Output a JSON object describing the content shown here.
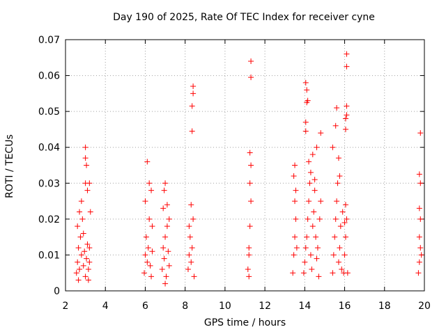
{
  "chart_data": {
    "type": "scatter",
    "title": "Day 190 of 2025, Rate Of TEC Index for receiver cyne",
    "xlabel": "GPS time / hours",
    "ylabel": "ROTI / TECUs",
    "xlim": [
      2,
      20
    ],
    "ylim": [
      0,
      0.07
    ],
    "x_ticks": [
      2,
      4,
      6,
      8,
      10,
      12,
      14,
      16,
      18,
      20
    ],
    "y_ticks": [
      0,
      0.01,
      0.02,
      0.03,
      0.04,
      0.05,
      0.06,
      0.07
    ],
    "grid": true,
    "marker": "+",
    "color": "#ff0000",
    "series": [
      {
        "points": [
          [
            2.55,
            0.005
          ],
          [
            2.6,
            0.008
          ],
          [
            2.65,
            0.012
          ],
          [
            2.7,
            0.006
          ],
          [
            2.75,
            0.015
          ],
          [
            2.8,
            0.01
          ],
          [
            2.85,
            0.02
          ],
          [
            2.9,
            0.007
          ],
          [
            2.95,
            0.011
          ],
          [
            3.0,
            0.004
          ],
          [
            3.05,
            0.009
          ],
          [
            3.1,
            0.013
          ],
          [
            3.15,
            0.006
          ],
          [
            3.2,
            0.008
          ],
          [
            2.6,
            0.018
          ],
          [
            2.7,
            0.022
          ],
          [
            2.8,
            0.025
          ],
          [
            2.9,
            0.016
          ],
          [
            3.0,
            0.03
          ],
          [
            3.05,
            0.035
          ],
          [
            3.0,
            0.037
          ],
          [
            3.0,
            0.04
          ],
          [
            3.1,
            0.028
          ],
          [
            3.2,
            0.03
          ],
          [
            3.25,
            0.022
          ],
          [
            3.2,
            0.012
          ],
          [
            2.65,
            0.003
          ],
          [
            3.15,
            0.003
          ],
          [
            5.95,
            0.005
          ],
          [
            6.0,
            0.01
          ],
          [
            6.05,
            0.015
          ],
          [
            6.1,
            0.008
          ],
          [
            6.15,
            0.012
          ],
          [
            6.2,
            0.02
          ],
          [
            6.25,
            0.007
          ],
          [
            6.3,
            0.004
          ],
          [
            6.35,
            0.011
          ],
          [
            6.0,
            0.025
          ],
          [
            6.1,
            0.036
          ],
          [
            6.2,
            0.03
          ],
          [
            6.3,
            0.028
          ],
          [
            6.35,
            0.018
          ],
          [
            6.85,
            0.006
          ],
          [
            6.9,
            0.012
          ],
          [
            6.95,
            0.009
          ],
          [
            7.0,
            0.015
          ],
          [
            7.05,
            0.004
          ],
          [
            7.1,
            0.018
          ],
          [
            7.15,
            0.011
          ],
          [
            7.2,
            0.007
          ],
          [
            6.9,
            0.023
          ],
          [
            6.95,
            0.028
          ],
          [
            7.0,
            0.03
          ],
          [
            7.1,
            0.024
          ],
          [
            7.0,
            0.002
          ],
          [
            7.2,
            0.02
          ],
          [
            8.15,
            0.006
          ],
          [
            8.2,
            0.01
          ],
          [
            8.25,
            0.015
          ],
          [
            8.3,
            0.008
          ],
          [
            8.35,
            0.012
          ],
          [
            8.4,
            0.02
          ],
          [
            8.45,
            0.004
          ],
          [
            8.3,
            0.024
          ],
          [
            8.35,
            0.0445
          ],
          [
            8.35,
            0.0515
          ],
          [
            8.4,
            0.055
          ],
          [
            8.4,
            0.057
          ],
          [
            8.2,
            0.018
          ],
          [
            11.15,
            0.006
          ],
          [
            11.2,
            0.012
          ],
          [
            11.25,
            0.018
          ],
          [
            11.3,
            0.025
          ],
          [
            11.25,
            0.03
          ],
          [
            11.3,
            0.035
          ],
          [
            11.25,
            0.0385
          ],
          [
            11.2,
            0.004
          ],
          [
            11.3,
            0.0595
          ],
          [
            11.3,
            0.064
          ],
          [
            11.2,
            0.01
          ],
          [
            13.4,
            0.005
          ],
          [
            13.45,
            0.01
          ],
          [
            13.5,
            0.015
          ],
          [
            13.55,
            0.02
          ],
          [
            13.5,
            0.025
          ],
          [
            13.45,
            0.032
          ],
          [
            13.5,
            0.035
          ],
          [
            13.55,
            0.028
          ],
          [
            13.6,
            0.012
          ],
          [
            13.95,
            0.005
          ],
          [
            14.0,
            0.008
          ],
          [
            14.05,
            0.012
          ],
          [
            14.1,
            0.015
          ],
          [
            14.15,
            0.02
          ],
          [
            14.2,
            0.025
          ],
          [
            14.25,
            0.03
          ],
          [
            14.3,
            0.01
          ],
          [
            14.35,
            0.006
          ],
          [
            14.4,
            0.018
          ],
          [
            14.45,
            0.022
          ],
          [
            14.5,
            0.028
          ],
          [
            14.55,
            0.015
          ],
          [
            14.6,
            0.009
          ],
          [
            14.65,
            0.012
          ],
          [
            14.7,
            0.004
          ],
          [
            14.75,
            0.02
          ],
          [
            14.8,
            0.025
          ],
          [
            14.05,
            0.0445
          ],
          [
            14.05,
            0.047
          ],
          [
            14.1,
            0.0525
          ],
          [
            14.15,
            0.053
          ],
          [
            14.05,
            0.058
          ],
          [
            14.1,
            0.056
          ],
          [
            14.2,
            0.036
          ],
          [
            14.4,
            0.038
          ],
          [
            14.6,
            0.04
          ],
          [
            14.8,
            0.044
          ],
          [
            14.3,
            0.033
          ],
          [
            14.5,
            0.031
          ],
          [
            15.4,
            0.005
          ],
          [
            15.45,
            0.01
          ],
          [
            15.5,
            0.015
          ],
          [
            15.55,
            0.02
          ],
          [
            15.6,
            0.025
          ],
          [
            15.65,
            0.03
          ],
          [
            15.7,
            0.008
          ],
          [
            15.75,
            0.012
          ],
          [
            15.8,
            0.018
          ],
          [
            15.85,
            0.006
          ],
          [
            15.9,
            0.022
          ],
          [
            15.4,
            0.04
          ],
          [
            15.55,
            0.046
          ],
          [
            15.6,
            0.051
          ],
          [
            15.7,
            0.037
          ],
          [
            15.75,
            0.032
          ],
          [
            15.95,
            0.005
          ],
          [
            16.0,
            0.01
          ],
          [
            16.05,
            0.015
          ],
          [
            16.1,
            0.02
          ],
          [
            16.05,
            0.024
          ],
          [
            16.05,
            0.045
          ],
          [
            16.05,
            0.048
          ],
          [
            16.1,
            0.049
          ],
          [
            16.1,
            0.0515
          ],
          [
            16.1,
            0.0625
          ],
          [
            16.1,
            0.066
          ],
          [
            16.15,
            0.005
          ],
          [
            16.0,
            0.019
          ],
          [
            19.7,
            0.005
          ],
          [
            19.75,
            0.008
          ],
          [
            19.8,
            0.012
          ],
          [
            19.75,
            0.015
          ],
          [
            19.8,
            0.02
          ],
          [
            19.75,
            0.023
          ],
          [
            19.8,
            0.03
          ],
          [
            19.75,
            0.0325
          ],
          [
            19.8,
            0.044
          ],
          [
            19.85,
            0.01
          ]
        ]
      }
    ]
  }
}
